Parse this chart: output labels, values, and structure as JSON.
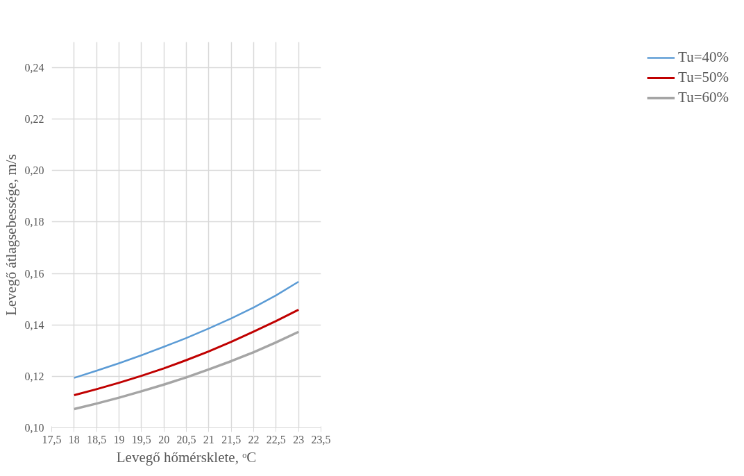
{
  "chart_data": {
    "type": "line",
    "xlabel": "Levegő hőmérsklete, ᵒC",
    "ylabel": "Levegő átlagsebessége, m/s",
    "x": [
      18,
      18.5,
      19,
      19.5,
      20,
      20.5,
      21,
      21.5,
      22,
      22.5,
      23
    ],
    "series": [
      {
        "name": "Tu=40%",
        "color": "#5b9bd5",
        "values": [
          0.1194,
          0.1222,
          0.1251,
          0.1282,
          0.1315,
          0.1349,
          0.1386,
          0.1425,
          0.1468,
          0.1515,
          0.1568
        ]
      },
      {
        "name": "Tu=50%",
        "color": "#c00000",
        "values": [
          0.1127,
          0.115,
          0.1175,
          0.1202,
          0.1231,
          0.1263,
          0.1297,
          0.1334,
          0.1374,
          0.1415,
          0.1459
        ]
      },
      {
        "name": "Tu=60%",
        "color": "#a5a5a5",
        "values": [
          0.1073,
          0.1094,
          0.1117,
          0.1142,
          0.1168,
          0.1196,
          0.1227,
          0.1259,
          0.1294,
          0.1332,
          0.1373
        ]
      }
    ],
    "xlim": [
      17.5,
      23.5
    ],
    "xticks": [
      {
        "value": 17.5,
        "label": "17,5"
      },
      18,
      {
        "value": 18.5,
        "label": "18,5"
      },
      19,
      {
        "value": 19.5,
        "label": "19,5"
      },
      20,
      {
        "value": 20.5,
        "label": "20,5"
      },
      21,
      {
        "value": 21.5,
        "label": "21,5"
      },
      22,
      {
        "value": 22.5,
        "label": "22,5"
      },
      23,
      {
        "value": 23.5,
        "label": "23,5"
      }
    ],
    "ylim": [
      0.1,
      0.25
    ],
    "yticks": [
      {
        "value": 0.1,
        "label": "0,10"
      },
      {
        "value": 0.12,
        "label": "0,12"
      },
      {
        "value": 0.14,
        "label": "0,14"
      },
      {
        "value": 0.16,
        "label": "0,16"
      },
      {
        "value": 0.18,
        "label": "0,18"
      },
      {
        "value": 0.2,
        "label": "0,20"
      },
      {
        "value": 0.22,
        "label": "0,22"
      },
      {
        "value": 0.24,
        "label": "0,24"
      }
    ],
    "grid": true,
    "legend": "right",
    "marker": "none",
    "line_style": "solid"
  }
}
